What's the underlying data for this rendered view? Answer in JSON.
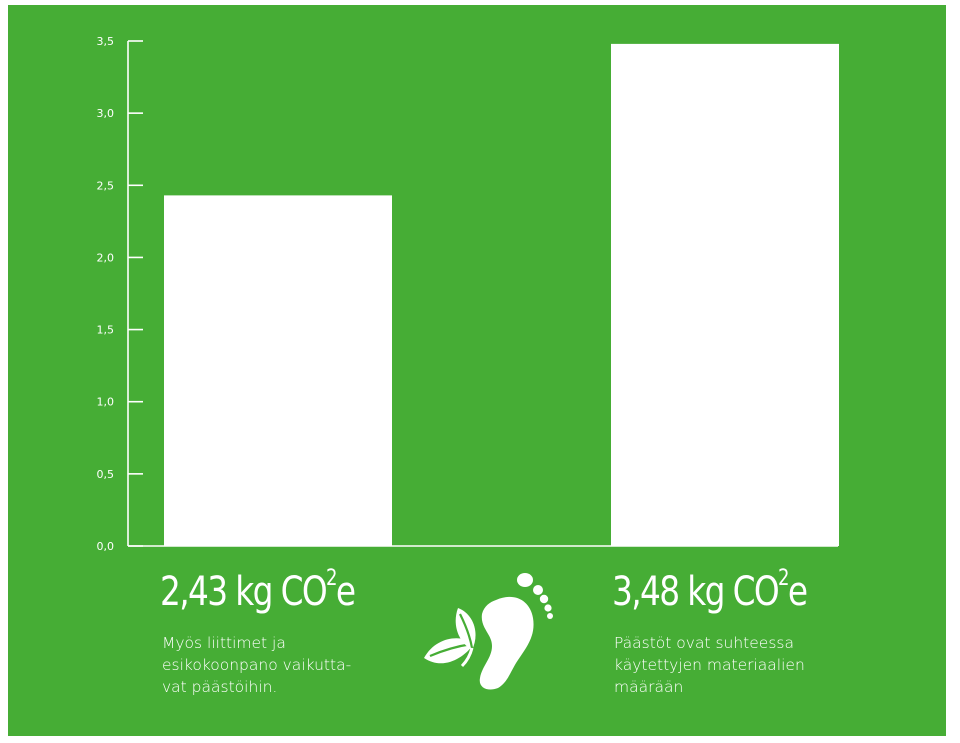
{
  "colors": {
    "background": "#46ad35",
    "bar": "#ffffff",
    "text": "#ffffff"
  },
  "icon": "leaf-footprint-icon",
  "chart_data": {
    "type": "bar",
    "categories": [
      "",
      ""
    ],
    "values": [
      2.43,
      3.48
    ],
    "ylim": [
      0,
      3.5
    ],
    "yticks": [
      "0,0",
      "0,5",
      "1,0",
      "1,5",
      "2,0",
      "2,5",
      "3,0",
      "3,5"
    ],
    "xlabel": "",
    "ylabel": "",
    "grid": false
  },
  "annotations": [
    {
      "value_text": "2,43 kg CO",
      "superscript": "2",
      "suffix": "e",
      "description": "Myös liittimet ja\nesikokoonpano vaikutta-\nvat päästöihin."
    },
    {
      "value_text": "3,48 kg CO",
      "superscript": "2",
      "suffix": "e",
      "description": "Päästöt ovat suhteessa\nkäytettyjen materiaalien\nmäärään"
    }
  ]
}
